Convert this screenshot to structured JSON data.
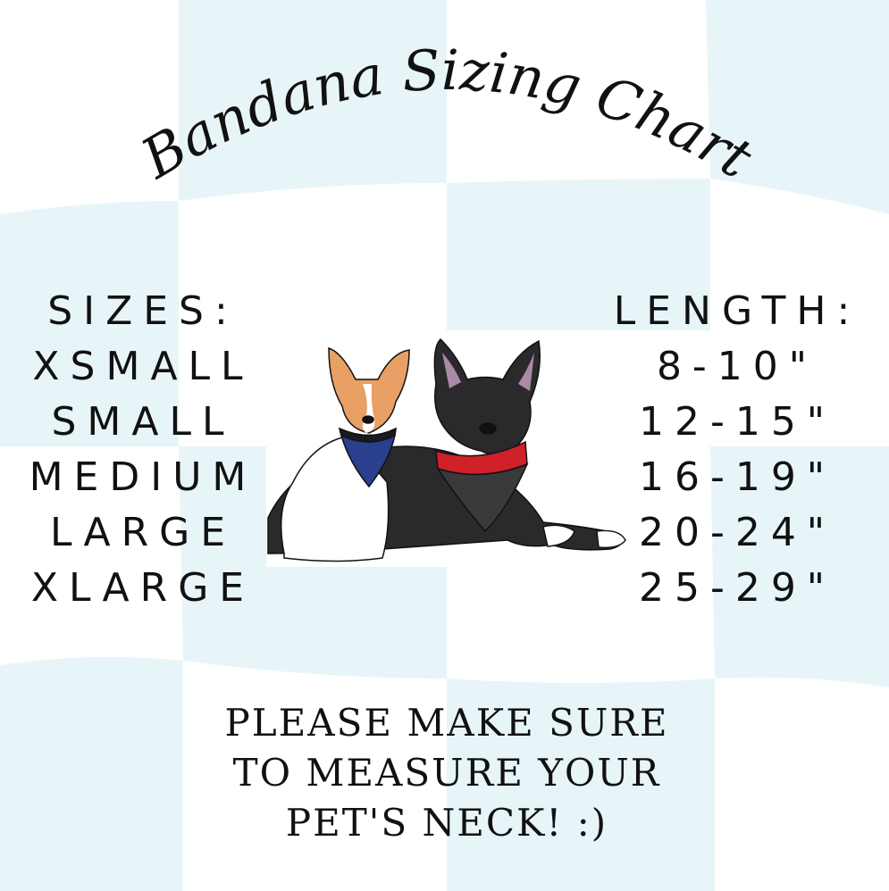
{
  "title": "Bandana  Sizing Chart",
  "sizes": {
    "header": "SIZES:",
    "items": [
      "XSMALL",
      "SMALL",
      "MEDIUM",
      "LARGE",
      "XLARGE"
    ]
  },
  "lengths": {
    "header": "LENGTH:",
    "items": [
      "8-10\"",
      "12-15\"",
      "16-19\"",
      "20-24\"",
      "25-29\""
    ]
  },
  "note": {
    "lines": [
      "PLEASE MAKE SURE",
      "TO MEASURE YOUR",
      "PET'S NECK! :)"
    ]
  },
  "colors": {
    "background": "#ffffff",
    "checker": "#e8f5f8",
    "text": "#111111",
    "bandana_blue": "#2b3f8f",
    "bandana_red": "#d0202a",
    "dog_black": "#2a2a2c",
    "dog_orange": "#e8a064"
  }
}
